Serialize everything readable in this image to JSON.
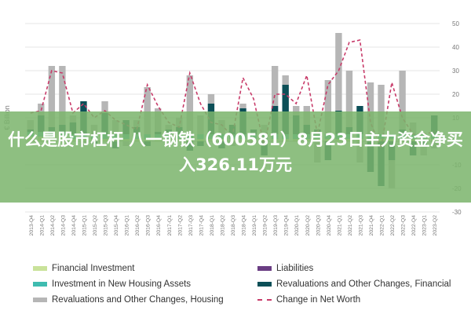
{
  "banner": {
    "title": "什么是股市杠杆 八一钢铁（600581）8月23日主力资金净买入326.11万元"
  },
  "chart_data": {
    "type": "bar",
    "ylabel": "€ Billion",
    "ylim": [
      -30,
      50
    ],
    "yticks": [
      50,
      40,
      30,
      20,
      10,
      0,
      -10,
      -20,
      -30
    ],
    "categories": [
      "2013-Q4",
      "2014-Q1",
      "2014-Q2",
      "2014-Q3",
      "2014-Q4",
      "2015-Q1",
      "2015-Q2",
      "2015-Q3",
      "2015-Q4",
      "2016-Q1",
      "2016-Q2",
      "2016-Q3",
      "2016-Q4",
      "2017-Q1",
      "2017-Q2",
      "2017-Q3",
      "2017-Q4",
      "2018-Q1",
      "2018-Q2",
      "2018-Q3",
      "2018-Q4",
      "2019-Q1",
      "2019-Q2",
      "2019-Q3",
      "2019-Q4",
      "2020-Q1",
      "2020-Q2",
      "2020-Q3",
      "2020-Q4",
      "2021-Q1",
      "2021-Q2",
      "2021-Q3",
      "2021-Q4",
      "2022-Q1",
      "2022-Q2",
      "2022-Q3",
      "2022-Q4",
      "2023-Q1",
      "2023-Q2"
    ],
    "grid": true,
    "legend_position": "bottom",
    "series": [
      {
        "name": "Financial Investment",
        "color": "#c9e29a",
        "values": [
          2,
          2,
          2,
          2,
          1,
          1,
          1,
          1,
          1,
          1,
          1,
          1,
          1,
          1,
          1,
          1,
          1,
          1,
          1,
          1,
          1,
          1,
          1,
          1,
          1,
          1,
          1,
          1,
          1,
          1,
          1,
          1,
          1,
          1,
          1,
          1,
          1,
          1,
          1
        ]
      },
      {
        "name": "Liabilities",
        "color": "#6a3d83",
        "values": [
          0,
          0,
          0,
          0,
          0,
          0,
          0,
          0,
          0,
          0,
          0,
          0,
          0,
          0,
          0,
          0,
          0,
          0,
          0,
          0,
          0,
          0,
          0,
          0,
          0,
          0,
          0,
          0,
          0,
          0,
          0,
          0,
          0,
          0,
          0,
          0,
          0,
          0,
          0
        ]
      },
      {
        "name": "Investment in New Housing Assets",
        "color": "#3fbcb0",
        "values": [
          2,
          2,
          2,
          2,
          2,
          2,
          2,
          2,
          2,
          2,
          2,
          2,
          2,
          2,
          2,
          2,
          2,
          2,
          2,
          2,
          2,
          2,
          2,
          2,
          2,
          2,
          2,
          2,
          2,
          2,
          2,
          2,
          2,
          2,
          2,
          2,
          2,
          2,
          2
        ]
      },
      {
        "name": "Revaluations and Other Changes, Financial",
        "color": "#0c4f57",
        "values": [
          1,
          7,
          2,
          3,
          5,
          14,
          -1,
          9,
          -3,
          6,
          3,
          -2,
          1,
          2,
          3,
          -4,
          -2,
          13,
          -3,
          4,
          11,
          2,
          -6,
          12,
          21,
          8,
          4,
          2,
          -8,
          10,
          3,
          12,
          -13,
          -19,
          -8,
          2,
          -6,
          -2,
          8
        ]
      },
      {
        "name": "Revaluations and Other Changes, Housing",
        "color": "#b6b6b6",
        "values": [
          4,
          5,
          26,
          25,
          3,
          -2,
          4,
          5,
          6,
          -2,
          3,
          20,
          10,
          2,
          4,
          25,
          8,
          4,
          6,
          -2,
          2,
          -1,
          4,
          17,
          4,
          4,
          8,
          -9,
          23,
          33,
          24,
          -9,
          22,
          21,
          -12,
          25,
          5,
          -4,
          -3
        ]
      },
      {
        "name": "Change in Net Worth",
        "color": "#c83c6a",
        "values": [
          12,
          13,
          30,
          29,
          12,
          16,
          10,
          13,
          9,
          7,
          5,
          24,
          15,
          8,
          6,
          29,
          16,
          8,
          7,
          2,
          27,
          18,
          -2,
          20,
          20,
          16,
          28,
          3,
          24,
          30,
          42,
          43,
          8,
          -3,
          25,
          10,
          3,
          3,
          4
        ]
      }
    ]
  }
}
